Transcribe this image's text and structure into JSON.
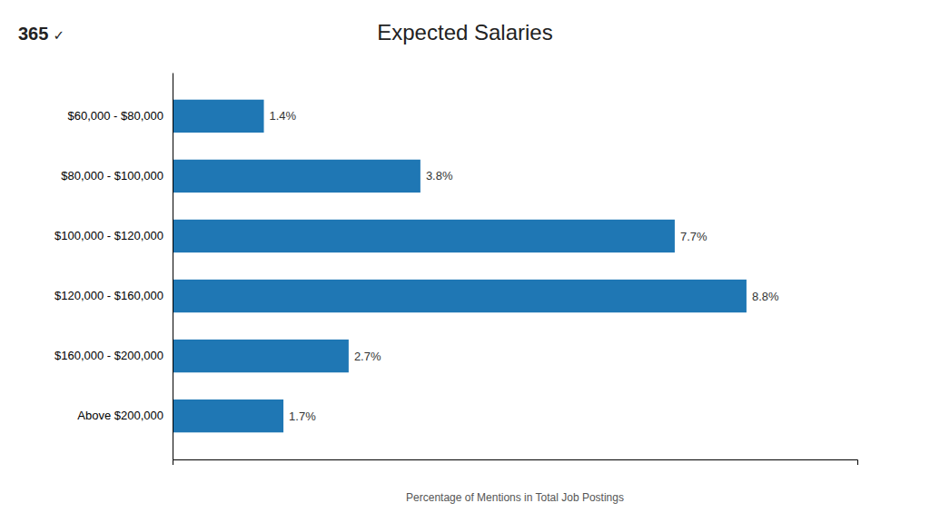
{
  "chart_data": {
    "type": "bar",
    "orientation": "horizontal",
    "title": "Expected Salaries",
    "xlabel": "Percentage of Mentions in Total Job Postings",
    "categories": [
      "$60,000 - $80,000",
      "$80,000 - $100,000",
      "$100,000 - $120,000",
      "$120,000 - $160,000",
      "$160,000 - $200,000",
      "Above $200,000"
    ],
    "values": [
      1.4,
      3.8,
      7.7,
      8.8,
      2.7,
      1.7
    ],
    "value_labels": [
      "1.4%",
      "3.8%",
      "7.7%",
      "8.8%",
      "2.7%",
      "1.7%"
    ],
    "data_labels": true,
    "xlim": [
      0,
      10.5
    ],
    "tick_labels": "y",
    "annotations": [
      "365",
      "✓"
    ]
  }
}
